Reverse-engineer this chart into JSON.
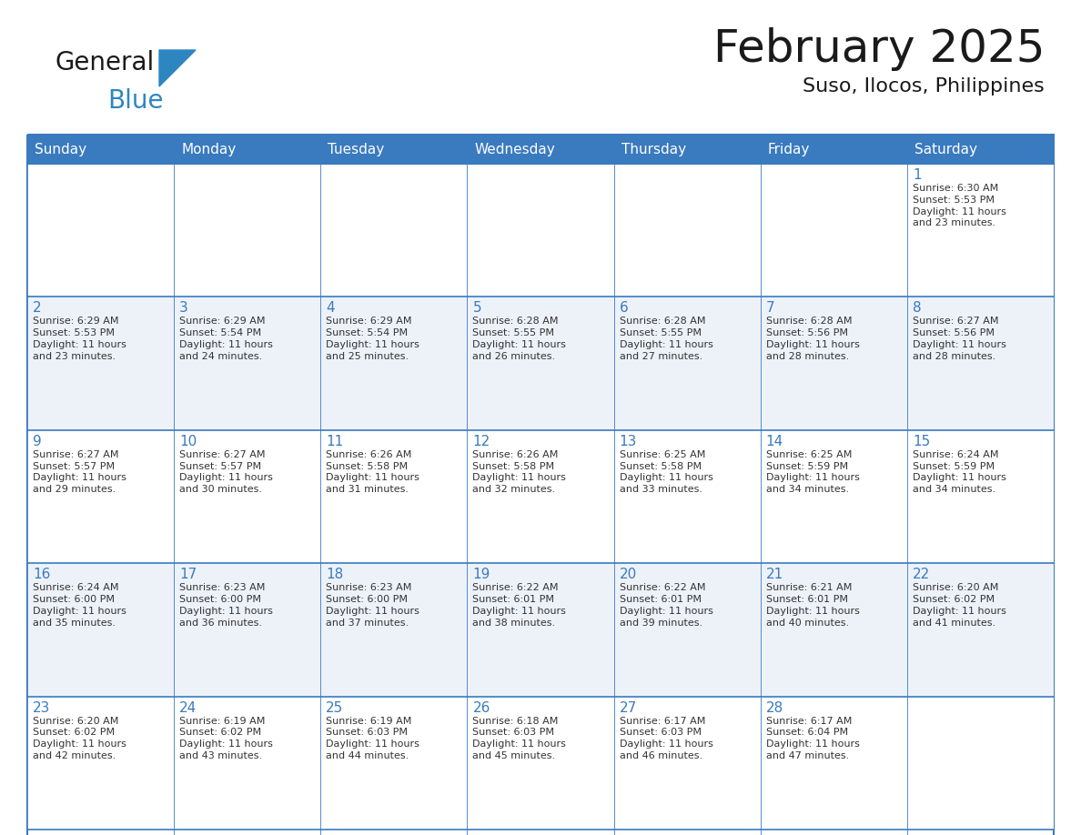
{
  "title": "February 2025",
  "subtitle": "Suso, Ilocos, Philippines",
  "header_color": "#3a7abf",
  "header_text_color": "#ffffff",
  "cell_bg_color": "#ffffff",
  "alt_cell_bg_color": "#edf2f9",
  "border_color": "#3a7abf",
  "text_color": "#333333",
  "day_num_color": "#3a7abf",
  "day_headers": [
    "Sunday",
    "Monday",
    "Tuesday",
    "Wednesday",
    "Thursday",
    "Friday",
    "Saturday"
  ],
  "days": [
    {
      "day": 1,
      "col": 6,
      "row": 0,
      "sunrise": "6:30 AM",
      "sunset": "5:53 PM",
      "daylight": "11 hours and 23 minutes."
    },
    {
      "day": 2,
      "col": 0,
      "row": 1,
      "sunrise": "6:29 AM",
      "sunset": "5:53 PM",
      "daylight": "11 hours and 23 minutes."
    },
    {
      "day": 3,
      "col": 1,
      "row": 1,
      "sunrise": "6:29 AM",
      "sunset": "5:54 PM",
      "daylight": "11 hours and 24 minutes."
    },
    {
      "day": 4,
      "col": 2,
      "row": 1,
      "sunrise": "6:29 AM",
      "sunset": "5:54 PM",
      "daylight": "11 hours and 25 minutes."
    },
    {
      "day": 5,
      "col": 3,
      "row": 1,
      "sunrise": "6:28 AM",
      "sunset": "5:55 PM",
      "daylight": "11 hours and 26 minutes."
    },
    {
      "day": 6,
      "col": 4,
      "row": 1,
      "sunrise": "6:28 AM",
      "sunset": "5:55 PM",
      "daylight": "11 hours and 27 minutes."
    },
    {
      "day": 7,
      "col": 5,
      "row": 1,
      "sunrise": "6:28 AM",
      "sunset": "5:56 PM",
      "daylight": "11 hours and 28 minutes."
    },
    {
      "day": 8,
      "col": 6,
      "row": 1,
      "sunrise": "6:27 AM",
      "sunset": "5:56 PM",
      "daylight": "11 hours and 28 minutes."
    },
    {
      "day": 9,
      "col": 0,
      "row": 2,
      "sunrise": "6:27 AM",
      "sunset": "5:57 PM",
      "daylight": "11 hours and 29 minutes."
    },
    {
      "day": 10,
      "col": 1,
      "row": 2,
      "sunrise": "6:27 AM",
      "sunset": "5:57 PM",
      "daylight": "11 hours and 30 minutes."
    },
    {
      "day": 11,
      "col": 2,
      "row": 2,
      "sunrise": "6:26 AM",
      "sunset": "5:58 PM",
      "daylight": "11 hours and 31 minutes."
    },
    {
      "day": 12,
      "col": 3,
      "row": 2,
      "sunrise": "6:26 AM",
      "sunset": "5:58 PM",
      "daylight": "11 hours and 32 minutes."
    },
    {
      "day": 13,
      "col": 4,
      "row": 2,
      "sunrise": "6:25 AM",
      "sunset": "5:58 PM",
      "daylight": "11 hours and 33 minutes."
    },
    {
      "day": 14,
      "col": 5,
      "row": 2,
      "sunrise": "6:25 AM",
      "sunset": "5:59 PM",
      "daylight": "11 hours and 34 minutes."
    },
    {
      "day": 15,
      "col": 6,
      "row": 2,
      "sunrise": "6:24 AM",
      "sunset": "5:59 PM",
      "daylight": "11 hours and 34 minutes."
    },
    {
      "day": 16,
      "col": 0,
      "row": 3,
      "sunrise": "6:24 AM",
      "sunset": "6:00 PM",
      "daylight": "11 hours and 35 minutes."
    },
    {
      "day": 17,
      "col": 1,
      "row": 3,
      "sunrise": "6:23 AM",
      "sunset": "6:00 PM",
      "daylight": "11 hours and 36 minutes."
    },
    {
      "day": 18,
      "col": 2,
      "row": 3,
      "sunrise": "6:23 AM",
      "sunset": "6:00 PM",
      "daylight": "11 hours and 37 minutes."
    },
    {
      "day": 19,
      "col": 3,
      "row": 3,
      "sunrise": "6:22 AM",
      "sunset": "6:01 PM",
      "daylight": "11 hours and 38 minutes."
    },
    {
      "day": 20,
      "col": 4,
      "row": 3,
      "sunrise": "6:22 AM",
      "sunset": "6:01 PM",
      "daylight": "11 hours and 39 minutes."
    },
    {
      "day": 21,
      "col": 5,
      "row": 3,
      "sunrise": "6:21 AM",
      "sunset": "6:01 PM",
      "daylight": "11 hours and 40 minutes."
    },
    {
      "day": 22,
      "col": 6,
      "row": 3,
      "sunrise": "6:20 AM",
      "sunset": "6:02 PM",
      "daylight": "11 hours and 41 minutes."
    },
    {
      "day": 23,
      "col": 0,
      "row": 4,
      "sunrise": "6:20 AM",
      "sunset": "6:02 PM",
      "daylight": "11 hours and 42 minutes."
    },
    {
      "day": 24,
      "col": 1,
      "row": 4,
      "sunrise": "6:19 AM",
      "sunset": "6:02 PM",
      "daylight": "11 hours and 43 minutes."
    },
    {
      "day": 25,
      "col": 2,
      "row": 4,
      "sunrise": "6:19 AM",
      "sunset": "6:03 PM",
      "daylight": "11 hours and 44 minutes."
    },
    {
      "day": 26,
      "col": 3,
      "row": 4,
      "sunrise": "6:18 AM",
      "sunset": "6:03 PM",
      "daylight": "11 hours and 45 minutes."
    },
    {
      "day": 27,
      "col": 4,
      "row": 4,
      "sunrise": "6:17 AM",
      "sunset": "6:03 PM",
      "daylight": "11 hours and 46 minutes."
    },
    {
      "day": 28,
      "col": 5,
      "row": 4,
      "sunrise": "6:17 AM",
      "sunset": "6:04 PM",
      "daylight": "11 hours and 47 minutes."
    }
  ],
  "num_rows": 5,
  "num_cols": 7,
  "logo_general_color": "#1a1a1a",
  "logo_blue_color": "#2e86c1",
  "logo_triangle_color": "#2e86c1",
  "title_fontsize": 36,
  "subtitle_fontsize": 16,
  "header_fontsize": 11,
  "day_num_fontsize": 11,
  "info_fontsize": 8
}
